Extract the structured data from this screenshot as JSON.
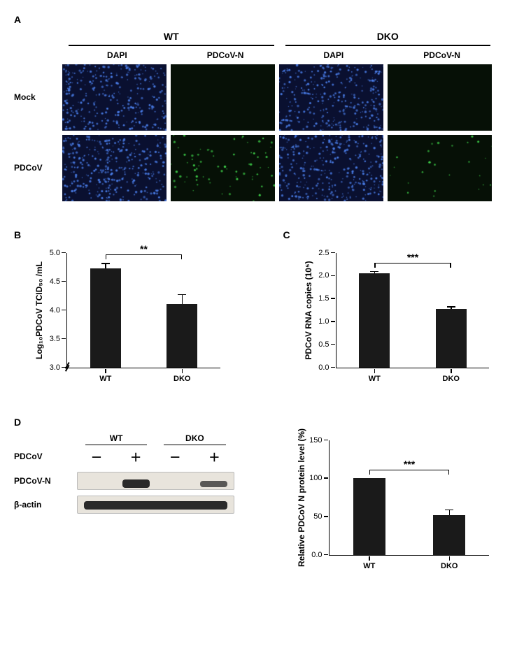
{
  "panelA": {
    "label": "A",
    "groups": [
      "WT",
      "DKO"
    ],
    "stains": [
      "DAPI",
      "PDCoV-N"
    ],
    "rows": [
      "Mock",
      "PDCoV"
    ],
    "dapi_bg": "#0a1030",
    "pdcovn_bg": "#061006",
    "dapi_dot_color": "#4a7de8",
    "pdcovn_dot_color": "#3fd24a",
    "cells": {
      "mock_wt_dapi_dots": 320,
      "mock_wt_pdcovn_dots": 0,
      "mock_dko_dapi_dots": 320,
      "mock_dko_pdcovn_dots": 0,
      "pdcov_wt_dapi_dots": 340,
      "pdcov_wt_pdcovn_dots": 70,
      "pdcov_dko_dapi_dots": 340,
      "pdcov_dko_pdcovn_dots": 25
    }
  },
  "panelB": {
    "label": "B",
    "ylabel": "Log₁₀PDCoV TCID₅₀ /mL",
    "ylim": [
      3.0,
      5.0
    ],
    "ytick_step": 0.5,
    "yticks": [
      3.0,
      3.5,
      4.0,
      4.5,
      5.0
    ],
    "categories": [
      "WT",
      "DKO"
    ],
    "values": [
      4.72,
      4.1
    ],
    "errors": [
      0.1,
      0.18
    ],
    "bar_color": "#1a1a1a",
    "bar_width": 0.4,
    "sig": "**",
    "has_axis_break": true
  },
  "panelC": {
    "label": "C",
    "ylabel": "PDCoV RNA copies (10⁵)",
    "ylim": [
      0,
      2.5
    ],
    "ytick_step": 0.5,
    "yticks": [
      0,
      0.5,
      1.0,
      1.5,
      2.0,
      2.5
    ],
    "categories": [
      "WT",
      "DKO"
    ],
    "values": [
      2.05,
      1.27
    ],
    "errors": [
      0.05,
      0.06
    ],
    "bar_color": "#1a1a1a",
    "bar_width": 0.4,
    "sig": "***"
  },
  "panelD": {
    "label": "D",
    "wb": {
      "groups": [
        "WT",
        "DKO"
      ],
      "treatment_label": "PDCoV",
      "treatment_symbols": [
        "－",
        "＋",
        "－",
        "＋"
      ],
      "rows": [
        {
          "label": "PDCoV-N",
          "bands": [
            {
              "lane": 1,
              "intensity": 1.0
            },
            {
              "lane": 3,
              "intensity": 0.5
            }
          ]
        },
        {
          "label": "β-actin",
          "bands": [
            {
              "lane": 0,
              "intensity": 1.0
            },
            {
              "lane": 1,
              "intensity": 1.0
            },
            {
              "lane": 2,
              "intensity": 1.0
            },
            {
              "lane": 3,
              "intensity": 1.0
            }
          ],
          "continuous": true
        }
      ]
    },
    "chart": {
      "ylabel": "Relative PDCoV N protein level (%)",
      "ylim": [
        0,
        150
      ],
      "ytick_step": 50,
      "yticks": [
        0,
        50,
        100,
        150
      ],
      "categories": [
        "WT",
        "DKO"
      ],
      "values": [
        100,
        52
      ],
      "errors": [
        0,
        7
      ],
      "bar_color": "#1a1a1a",
      "bar_width": 0.4,
      "sig": "***"
    }
  }
}
